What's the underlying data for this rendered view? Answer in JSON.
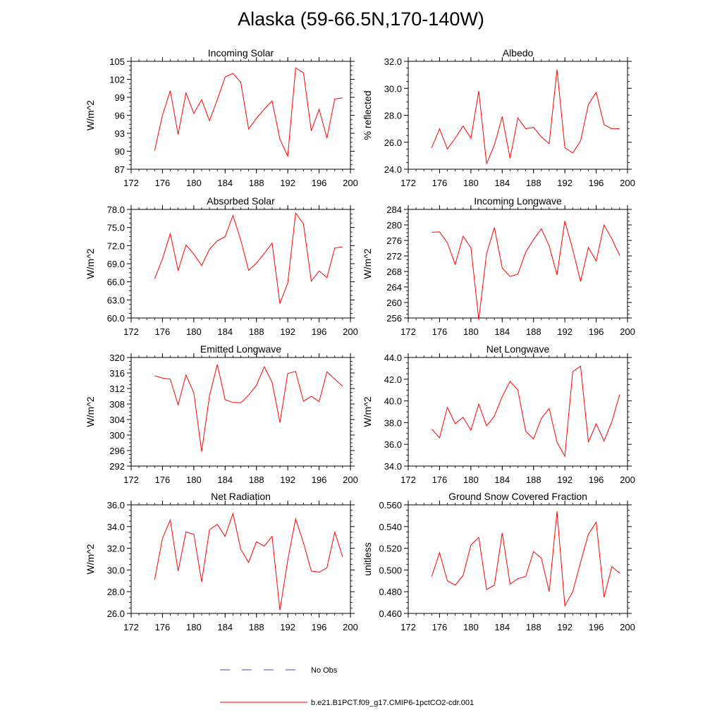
{
  "figure": {
    "title": "Alaska (59-66.5N,170-140W)"
  },
  "legend": {
    "entries": [
      {
        "label": "No Obs",
        "color": "#4444cc",
        "style": "dashed"
      },
      {
        "label": "b.e21.B1PCT.f09_g17.CMIP6-1pctCO2-cdr.001",
        "color": "#ff0000",
        "style": "solid"
      }
    ]
  },
  "chart_data": [
    {
      "type": "line",
      "title": "Incoming Solar",
      "ylabel": "W/m^2",
      "xlim": [
        172,
        200
      ],
      "ylim": [
        87,
        105
      ],
      "xticks": [
        "172",
        "176",
        "180",
        "184",
        "188",
        "192",
        "196",
        "200"
      ],
      "yticks": [
        "87",
        "90",
        "93",
        "96",
        "99",
        "102",
        "105"
      ],
      "grid": false,
      "x": [
        175,
        176,
        177,
        178,
        179,
        180,
        181,
        182,
        183,
        184,
        185,
        186,
        187,
        188,
        189,
        190,
        191,
        192,
        193,
        194,
        195,
        196,
        197,
        198,
        199
      ],
      "series": [
        {
          "name": "b.e21.B1PCT.f09_g17.CMIP6-1pctCO2-cdr.001",
          "color": "#ff0000",
          "values": [
            90.1,
            96.0,
            100.1,
            92.8,
            99.7,
            96.3,
            98.6,
            95.1,
            98.6,
            102.4,
            103.0,
            101.5,
            93.7,
            95.5,
            97.0,
            98.4,
            92.0,
            89.2,
            103.9,
            103.1,
            93.4,
            97.0,
            92.2,
            98.7,
            98.9
          ]
        }
      ]
    },
    {
      "type": "line",
      "title": "Albedo",
      "ylabel": "% reflected",
      "xlim": [
        172,
        200
      ],
      "ylim": [
        24.0,
        32.0
      ],
      "xticks": [
        "172",
        "176",
        "180",
        "184",
        "188",
        "192",
        "196",
        "200"
      ],
      "yticks": [
        "24.0",
        "26.0",
        "28.0",
        "30.0",
        "32.0"
      ],
      "grid": false,
      "x": [
        175,
        176,
        177,
        178,
        179,
        180,
        181,
        182,
        183,
        184,
        185,
        186,
        187,
        188,
        189,
        190,
        191,
        192,
        193,
        194,
        195,
        196,
        197,
        198,
        199
      ],
      "series": [
        {
          "name": "b.e21.B1PCT.f09_g17.CMIP6-1pctCO2-cdr.001",
          "color": "#ff0000",
          "values": [
            25.6,
            27.0,
            25.5,
            26.3,
            27.2,
            26.3,
            29.8,
            24.4,
            25.8,
            27.9,
            24.8,
            27.8,
            27.0,
            27.1,
            26.4,
            25.9,
            31.4,
            25.6,
            25.2,
            26.1,
            28.8,
            29.7,
            27.3,
            27.0,
            27.0
          ]
        }
      ]
    },
    {
      "type": "line",
      "title": "Absorbed Solar",
      "ylabel": "W/m^2",
      "xlim": [
        172,
        200
      ],
      "ylim": [
        60.0,
        78.0
      ],
      "xticks": [
        "172",
        "176",
        "180",
        "184",
        "188",
        "192",
        "196",
        "200"
      ],
      "yticks": [
        "60.0",
        "63.0",
        "66.0",
        "69.0",
        "72.0",
        "75.0",
        "78.0"
      ],
      "grid": false,
      "x": [
        175,
        176,
        177,
        178,
        179,
        180,
        181,
        182,
        183,
        184,
        185,
        186,
        187,
        188,
        189,
        190,
        191,
        192,
        193,
        194,
        195,
        196,
        197,
        198,
        199
      ],
      "series": [
        {
          "name": "b.e21.B1PCT.f09_g17.CMIP6-1pctCO2-cdr.001",
          "color": "#ff0000",
          "values": [
            66.5,
            69.8,
            74.0,
            67.9,
            72.1,
            70.6,
            68.7,
            71.4,
            72.8,
            73.5,
            77.0,
            72.9,
            67.9,
            69.1,
            70.7,
            72.4,
            62.4,
            65.8,
            77.4,
            75.6,
            66.1,
            67.8,
            66.7,
            71.6,
            71.8
          ]
        }
      ]
    },
    {
      "type": "line",
      "title": "Incoming Longwave",
      "ylabel": "W/m^2",
      "xlim": [
        172,
        200
      ],
      "ylim": [
        256,
        284
      ],
      "xticks": [
        "172",
        "176",
        "180",
        "184",
        "188",
        "192",
        "196",
        "200"
      ],
      "yticks": [
        "256",
        "260",
        "264",
        "268",
        "272",
        "276",
        "280",
        "284"
      ],
      "grid": false,
      "x": [
        175,
        176,
        177,
        178,
        179,
        180,
        181,
        182,
        183,
        184,
        185,
        186,
        187,
        188,
        189,
        190,
        191,
        192,
        193,
        194,
        195,
        196,
        197,
        198,
        199
      ],
      "series": [
        {
          "name": "b.e21.B1PCT.f09_g17.CMIP6-1pctCO2-cdr.001",
          "color": "#ff0000",
          "values": [
            278.1,
            278.2,
            275.4,
            269.8,
            277.1,
            274.1,
            255.6,
            272.6,
            279.3,
            268.9,
            266.7,
            267.3,
            273.0,
            276.2,
            279.0,
            274.6,
            267.1,
            281.0,
            273.7,
            265.4,
            274.2,
            270.7,
            280.0,
            276.4,
            272.1
          ]
        }
      ]
    },
    {
      "type": "line",
      "title": "Emitted Longwave",
      "ylabel": "W/m^2",
      "xlim": [
        172,
        200
      ],
      "ylim": [
        292,
        320
      ],
      "xticks": [
        "172",
        "176",
        "180",
        "184",
        "188",
        "192",
        "196",
        "200"
      ],
      "yticks": [
        "292",
        "296",
        "300",
        "304",
        "308",
        "312",
        "316",
        "320"
      ],
      "grid": false,
      "x": [
        175,
        176,
        177,
        178,
        179,
        180,
        181,
        182,
        183,
        184,
        185,
        186,
        187,
        188,
        189,
        190,
        191,
        192,
        193,
        194,
        195,
        196,
        197,
        198,
        199
      ],
      "series": [
        {
          "name": "b.e21.B1PCT.f09_g17.CMIP6-1pctCO2-cdr.001",
          "color": "#ff0000",
          "values": [
            315.3,
            314.7,
            314.4,
            307.8,
            315.5,
            310.9,
            295.7,
            310.1,
            318.2,
            309.1,
            308.4,
            308.3,
            310.3,
            312.8,
            317.6,
            313.6,
            303.2,
            315.9,
            316.4,
            308.7,
            310.0,
            308.6,
            316.3,
            314.4,
            312.6
          ]
        }
      ]
    },
    {
      "type": "line",
      "title": "Net Longwave",
      "ylabel": "W/m^2",
      "xlim": [
        172,
        200
      ],
      "ylim": [
        34.0,
        44.0
      ],
      "xticks": [
        "172",
        "176",
        "180",
        "184",
        "188",
        "192",
        "196",
        "200"
      ],
      "yticks": [
        "34.0",
        "36.0",
        "38.0",
        "40.0",
        "42.0",
        "44.0"
      ],
      "grid": false,
      "x": [
        175,
        176,
        177,
        178,
        179,
        180,
        181,
        182,
        183,
        184,
        185,
        186,
        187,
        188,
        189,
        190,
        191,
        192,
        193,
        194,
        195,
        196,
        197,
        198,
        199
      ],
      "series": [
        {
          "name": "b.e21.B1PCT.f09_g17.CMIP6-1pctCO2-cdr.001",
          "color": "#ff0000",
          "values": [
            37.4,
            36.6,
            39.4,
            37.9,
            38.5,
            37.3,
            39.7,
            37.7,
            38.6,
            40.4,
            41.8,
            41.0,
            37.2,
            36.5,
            38.4,
            39.3,
            36.2,
            34.9,
            42.7,
            43.2,
            36.2,
            37.9,
            36.3,
            38.1,
            40.6
          ]
        }
      ]
    },
    {
      "type": "line",
      "title": "Net Radiation",
      "ylabel": "W/m^2",
      "xlim": [
        172,
        200
      ],
      "ylim": [
        26.0,
        36.0
      ],
      "xticks": [
        "172",
        "176",
        "180",
        "184",
        "188",
        "192",
        "196",
        "200"
      ],
      "yticks": [
        "26.0",
        "28.0",
        "30.0",
        "32.0",
        "34.0",
        "36.0"
      ],
      "grid": false,
      "x": [
        175,
        176,
        177,
        178,
        179,
        180,
        181,
        182,
        183,
        184,
        185,
        186,
        187,
        188,
        189,
        190,
        191,
        192,
        193,
        194,
        195,
        196,
        197,
        198,
        199
      ],
      "series": [
        {
          "name": "b.e21.B1PCT.f09_g17.CMIP6-1pctCO2-cdr.001",
          "color": "#ff0000",
          "values": [
            29.1,
            32.9,
            34.6,
            29.9,
            33.5,
            33.3,
            28.9,
            33.7,
            34.2,
            33.1,
            35.2,
            31.9,
            30.7,
            32.6,
            32.2,
            33.1,
            26.3,
            30.9,
            34.7,
            32.5,
            29.9,
            29.8,
            30.2,
            33.5,
            31.2
          ]
        }
      ]
    },
    {
      "type": "line",
      "title": "Ground Snow Covered Fraction",
      "ylabel": "unitless",
      "xlim": [
        172,
        200
      ],
      "ylim": [
        0.46,
        0.56
      ],
      "xticks": [
        "172",
        "176",
        "180",
        "184",
        "188",
        "192",
        "196",
        "200"
      ],
      "yticks": [
        "0.460",
        "0.480",
        "0.500",
        "0.520",
        "0.540",
        "0.560"
      ],
      "grid": false,
      "x": [
        175,
        176,
        177,
        178,
        179,
        180,
        181,
        182,
        183,
        184,
        185,
        186,
        187,
        188,
        189,
        190,
        191,
        192,
        193,
        194,
        195,
        196,
        197,
        198,
        199
      ],
      "series": [
        {
          "name": "b.e21.B1PCT.f09_g17.CMIP6-1pctCO2-cdr.001",
          "color": "#ff0000",
          "values": [
            0.494,
            0.516,
            0.49,
            0.486,
            0.495,
            0.523,
            0.53,
            0.482,
            0.486,
            0.534,
            0.487,
            0.492,
            0.494,
            0.517,
            0.511,
            0.48,
            0.554,
            0.467,
            0.48,
            0.507,
            0.533,
            0.544,
            0.475,
            0.503,
            0.497
          ]
        }
      ]
    }
  ]
}
